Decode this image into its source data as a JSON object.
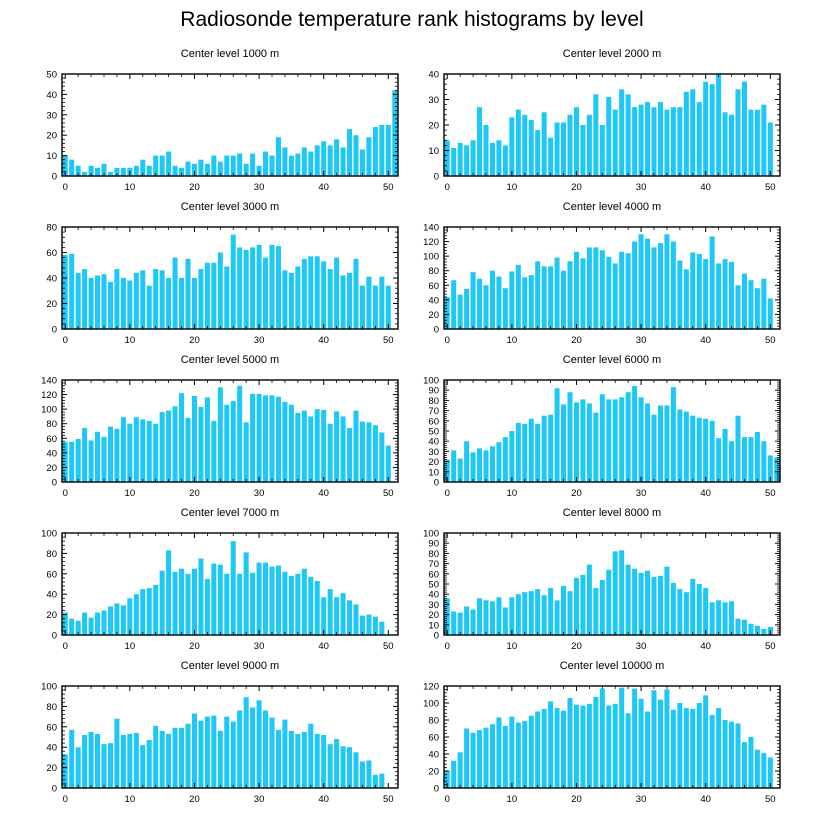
{
  "title": "Radiosonde temperature rank histograms by level",
  "bar_color": "#1ec8f5",
  "chart_data": [
    {
      "type": "bar",
      "title": "Center level 1000 m",
      "ylim": [
        0,
        50
      ],
      "yticks": [
        0,
        10,
        20,
        30,
        40,
        50
      ],
      "xticks": [
        0,
        10,
        20,
        30,
        40,
        50
      ],
      "xlim": [
        -0.5,
        51.5
      ],
      "values": [
        10,
        8,
        5,
        2,
        5,
        4,
        6,
        2,
        4,
        4,
        4,
        5,
        8,
        5,
        10,
        10,
        12,
        5,
        4,
        7,
        6,
        8,
        6,
        10,
        7,
        10,
        10,
        11,
        6,
        11,
        5,
        12,
        10,
        19,
        14,
        10,
        11,
        14,
        12,
        15,
        17,
        15,
        18,
        14,
        23,
        20,
        13,
        19,
        24,
        25,
        25,
        42
      ]
    },
    {
      "type": "bar",
      "title": "Center level 2000 m",
      "ylim": [
        0,
        40
      ],
      "yticks": [
        0,
        10,
        20,
        30,
        40
      ],
      "xticks": [
        0,
        10,
        20,
        30,
        40,
        50
      ],
      "xlim": [
        -0.5,
        51.5
      ],
      "values": [
        14,
        11,
        13,
        12,
        14,
        27,
        20,
        13,
        14,
        12,
        23,
        26,
        24,
        22,
        18,
        25,
        15,
        21,
        21,
        24,
        27,
        20,
        24,
        32,
        20,
        31,
        26,
        34,
        32,
        27,
        28,
        29,
        27,
        29,
        26,
        27,
        27,
        33,
        34,
        29,
        37,
        36,
        40,
        25,
        24,
        34,
        37,
        26,
        26,
        28,
        21,
        0
      ]
    },
    {
      "type": "bar",
      "title": "Center level 3000 m",
      "ylim": [
        0,
        80
      ],
      "yticks": [
        0,
        20,
        40,
        60,
        80
      ],
      "xticks": [
        0,
        10,
        20,
        30,
        40,
        50
      ],
      "xlim": [
        -0.5,
        51.5
      ],
      "values": [
        58,
        59,
        44,
        47,
        40,
        42,
        43,
        37,
        47,
        40,
        38,
        44,
        46,
        34,
        47,
        46,
        40,
        56,
        40,
        55,
        40,
        47,
        52,
        52,
        60,
        49,
        74,
        64,
        62,
        64,
        66,
        56,
        66,
        65,
        46,
        44,
        49,
        55,
        57,
        57,
        53,
        47,
        56,
        42,
        44,
        55,
        34,
        41,
        34,
        41,
        34,
        0
      ]
    },
    {
      "type": "bar",
      "title": "Center level 4000 m",
      "ylim": [
        0,
        140
      ],
      "yticks": [
        0,
        20,
        40,
        60,
        80,
        100,
        120,
        140
      ],
      "xticks": [
        0,
        10,
        20,
        30,
        40,
        50
      ],
      "xlim": [
        -0.5,
        51.5
      ],
      "values": [
        44,
        67,
        47,
        55,
        78,
        69,
        60,
        80,
        72,
        56,
        79,
        88,
        71,
        74,
        93,
        86,
        86,
        98,
        80,
        93,
        106,
        97,
        112,
        112,
        108,
        99,
        90,
        106,
        104,
        120,
        130,
        124,
        112,
        118,
        130,
        120,
        94,
        82,
        105,
        103,
        96,
        127,
        90,
        96,
        92,
        60,
        76,
        67,
        56,
        69,
        42,
        0
      ]
    },
    {
      "type": "bar",
      "title": "Center level 5000 m",
      "ylim": [
        0,
        140
      ],
      "yticks": [
        0,
        20,
        40,
        60,
        80,
        100,
        120,
        140
      ],
      "xticks": [
        0,
        10,
        20,
        30,
        40,
        50
      ],
      "xlim": [
        -0.5,
        51.5
      ],
      "values": [
        55,
        55,
        59,
        74,
        57,
        69,
        62,
        76,
        73,
        89,
        80,
        89,
        86,
        84,
        80,
        96,
        98,
        104,
        122,
        88,
        118,
        103,
        116,
        84,
        130,
        106,
        111,
        132,
        82,
        121,
        121,
        119,
        119,
        117,
        110,
        106,
        95,
        98,
        90,
        100,
        99,
        80,
        97,
        90,
        74,
        98,
        83,
        82,
        78,
        68,
        50,
        0
      ]
    },
    {
      "type": "bar",
      "title": "Center level 6000 m",
      "ylim": [
        0,
        100
      ],
      "yticks": [
        0,
        10,
        20,
        30,
        40,
        50,
        60,
        70,
        80,
        90,
        100
      ],
      "xticks": [
        0,
        10,
        20,
        30,
        40,
        50
      ],
      "xlim": [
        -0.5,
        51.5
      ],
      "values": [
        22,
        31,
        23,
        40,
        29,
        33,
        31,
        35,
        39,
        44,
        50,
        58,
        57,
        62,
        57,
        65,
        66,
        92,
        76,
        88,
        78,
        81,
        77,
        68,
        86,
        81,
        81,
        83,
        88,
        94,
        83,
        77,
        66,
        75,
        75,
        93,
        71,
        69,
        65,
        63,
        62,
        60,
        43,
        52,
        40,
        65,
        44,
        44,
        49,
        40,
        26,
        24
      ]
    },
    {
      "type": "bar",
      "title": "Center level 7000 m",
      "ylim": [
        0,
        100
      ],
      "yticks": [
        0,
        20,
        40,
        60,
        80,
        100
      ],
      "xticks": [
        0,
        10,
        20,
        30,
        40,
        50
      ],
      "xlim": [
        -0.5,
        51.5
      ],
      "values": [
        22,
        16,
        14,
        22,
        17,
        22,
        24,
        28,
        31,
        29,
        36,
        40,
        45,
        46,
        49,
        63,
        83,
        62,
        65,
        60,
        65,
        75,
        55,
        70,
        69,
        60,
        92,
        60,
        81,
        61,
        71,
        71,
        67,
        68,
        62,
        58,
        60,
        65,
        57,
        53,
        37,
        45,
        37,
        41,
        34,
        30,
        19,
        20,
        18,
        13,
        0,
        0
      ]
    },
    {
      "type": "bar",
      "title": "Center level 8000 m",
      "ylim": [
        0,
        100
      ],
      "yticks": [
        0,
        10,
        20,
        30,
        40,
        50,
        60,
        70,
        80,
        90,
        100
      ],
      "xticks": [
        0,
        10,
        20,
        30,
        40,
        50
      ],
      "xlim": [
        -0.5,
        51.5
      ],
      "values": [
        36,
        23,
        22,
        28,
        25,
        36,
        34,
        33,
        37,
        27,
        37,
        40,
        42,
        43,
        45,
        39,
        46,
        34,
        48,
        43,
        56,
        59,
        69,
        46,
        54,
        64,
        82,
        83,
        69,
        65,
        61,
        63,
        57,
        58,
        67,
        51,
        45,
        42,
        55,
        50,
        46,
        32,
        34,
        32,
        33,
        16,
        15,
        11,
        9,
        6,
        8,
        0
      ]
    },
    {
      "type": "bar",
      "title": "Center level 9000 m",
      "ylim": [
        0,
        100
      ],
      "yticks": [
        0,
        20,
        40,
        60,
        80,
        100
      ],
      "xticks": [
        0,
        10,
        20,
        30,
        40,
        50
      ],
      "xlim": [
        -0.5,
        51.5
      ],
      "values": [
        33,
        57,
        40,
        52,
        55,
        53,
        43,
        44,
        68,
        52,
        53,
        54,
        42,
        47,
        61,
        56,
        53,
        59,
        59,
        63,
        73,
        66,
        70,
        71,
        56,
        70,
        65,
        76,
        89,
        79,
        86,
        76,
        69,
        57,
        67,
        56,
        53,
        55,
        63,
        53,
        52,
        43,
        48,
        41,
        40,
        35,
        26,
        27,
        13,
        14,
        0,
        0
      ]
    },
    {
      "type": "bar",
      "title": "Center level 10000 m",
      "ylim": [
        0,
        120
      ],
      "yticks": [
        0,
        20,
        40,
        60,
        80,
        100,
        120
      ],
      "xticks": [
        0,
        10,
        20,
        30,
        40,
        50
      ],
      "xlim": [
        -0.5,
        51.5
      ],
      "values": [
        20,
        32,
        42,
        70,
        65,
        68,
        71,
        75,
        83,
        73,
        84,
        77,
        79,
        85,
        90,
        93,
        102,
        94,
        91,
        106,
        98,
        97,
        99,
        107,
        117,
        97,
        99,
        118,
        88,
        117,
        105,
        90,
        115,
        104,
        116,
        92,
        100,
        94,
        93,
        100,
        109,
        86,
        94,
        80,
        78,
        76,
        54,
        60,
        45,
        41,
        36,
        0
      ]
    }
  ]
}
